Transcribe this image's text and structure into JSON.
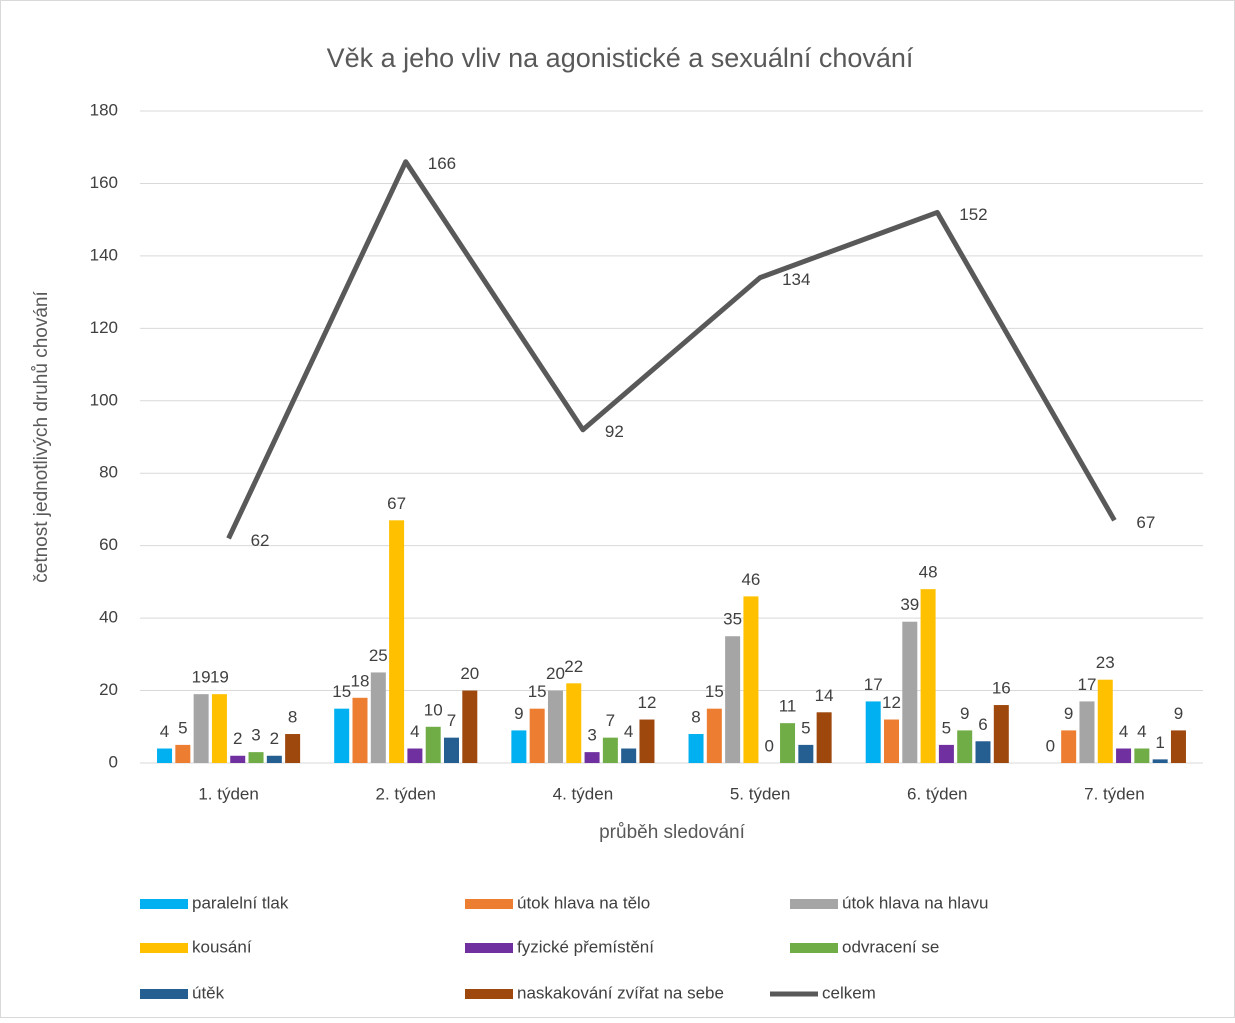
{
  "chart_data": {
    "type": "bar",
    "title": "Věk a jeho vliv na agonistické a sexuální chování",
    "y_label": "četnost jednotlivých druhů chování",
    "x_label": "průběh sledování",
    "categories": [
      "1. týden",
      "2. týden",
      "4. týden",
      "5. týden",
      "6. týden",
      "7. týden"
    ],
    "series": [
      {
        "name": "paralelní tlak",
        "color": "#00b0f0",
        "values": [
          4,
          15,
          9,
          8,
          17,
          0
        ]
      },
      {
        "name": "útok hlava na tělo",
        "color": "#ed7d31",
        "values": [
          5,
          18,
          15,
          15,
          12,
          9
        ]
      },
      {
        "name": "útok hlava na hlavu",
        "color": "#a5a5a5",
        "values": [
          19,
          25,
          20,
          35,
          39,
          17
        ]
      },
      {
        "name": "kousání",
        "color": "#ffc000",
        "values": [
          19,
          67,
          22,
          46,
          48,
          23
        ]
      },
      {
        "name": "fyzické přemístění",
        "color": "#7030a0",
        "values": [
          2,
          4,
          3,
          0,
          5,
          4
        ]
      },
      {
        "name": "odvracení se",
        "color": "#70ad47",
        "values": [
          3,
          10,
          7,
          11,
          9,
          4
        ]
      },
      {
        "name": "útěk",
        "color": "#255e91",
        "values": [
          2,
          7,
          4,
          5,
          6,
          1
        ]
      },
      {
        "name": "naskakování zvířat na sebe",
        "color": "#9e480e",
        "values": [
          8,
          20,
          12,
          14,
          16,
          9
        ]
      },
      {
        "name": "celkem",
        "color": "#595959",
        "type": "line",
        "values": [
          62,
          166,
          92,
          134,
          152,
          67
        ]
      }
    ],
    "ylim": [
      0,
      180
    ],
    "yticks": [
      0,
      20,
      40,
      60,
      80,
      100,
      120,
      140,
      160,
      180
    ],
    "grid": true,
    "legend": "bottom"
  }
}
